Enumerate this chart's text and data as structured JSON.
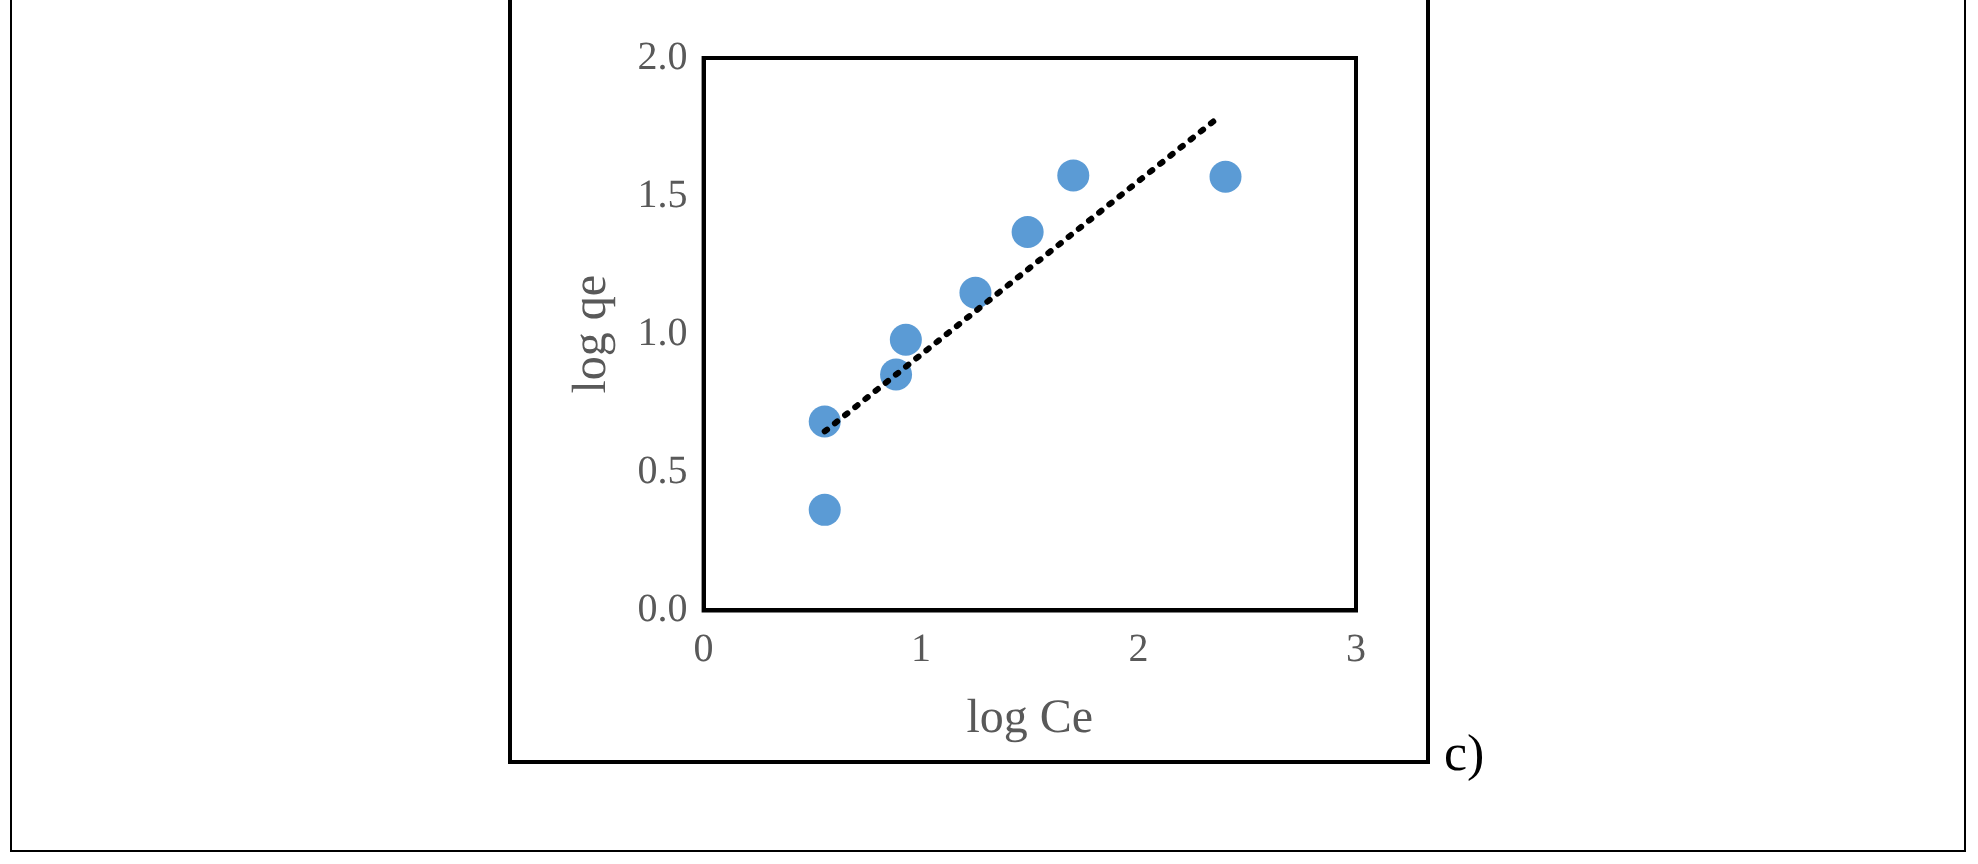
{
  "chart_data": {
    "type": "scatter",
    "xlabel": "log Ce",
    "ylabel": "log qe",
    "xlim": [
      0,
      3
    ],
    "xticks": [
      0,
      1,
      2,
      3
    ],
    "ylim": [
      0,
      2
    ],
    "yticks": [
      {
        "value": 0,
        "label": "0.0"
      },
      {
        "value": 0.5,
        "label": "0.5"
      },
      {
        "value": 1,
        "label": "1.0"
      },
      {
        "value": 1.5,
        "label": "1.5"
      },
      {
        "value": 2,
        "label": "2.0"
      }
    ],
    "grid": false,
    "legend": false,
    "marker": "circle",
    "annotations": [
      "c)"
    ],
    "series": [
      {
        "type": "scatter",
        "color": "#5b9bd5",
        "x": [
          0.557,
          0.557,
          0.885,
          0.93,
          1.25,
          1.49,
          1.7,
          2.4
        ],
        "values": [
          0.684,
          0.364,
          0.854,
          0.98,
          1.15,
          1.37,
          1.575,
          1.57
        ]
      },
      {
        "type": "line",
        "color": "#000000",
        "line_style": "dotted",
        "marker": "none",
        "x": [
          0.557,
          2.35
        ],
        "values": [
          0.648,
          1.774
        ]
      }
    ]
  }
}
